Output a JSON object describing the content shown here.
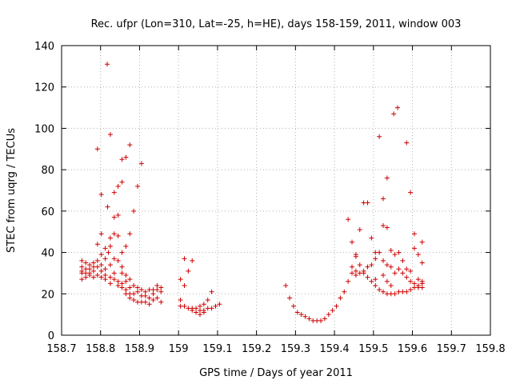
{
  "chart_data": {
    "type": "scatter",
    "title": "Rec. ufpr (Lon=310, Lat=-25, h=HE), days 158-159, 2011, window 003",
    "xlabel": "GPS time / Days of year 2011",
    "ylabel": "STEC from uqrg / TECUs",
    "xlim": [
      158.7,
      159.8
    ],
    "ylim": [
      0,
      140
    ],
    "xticks": [
      158.7,
      158.8,
      158.9,
      159.0,
      159.1,
      159.2,
      159.3,
      159.4,
      159.5,
      159.6,
      159.7,
      159.8
    ],
    "xtick_labels": [
      "158.7",
      "158.8",
      "158.9",
      "159",
      "159.1",
      "159.2",
      "159.3",
      "159.4",
      "159.5",
      "159.6",
      "159.7",
      "159.8"
    ],
    "yticks": [
      0,
      20,
      40,
      60,
      80,
      100,
      120,
      140
    ],
    "ytick_labels": [
      "0",
      "20",
      "40",
      "60",
      "80",
      "100",
      "120",
      "140"
    ],
    "grid": true,
    "marker": "+",
    "color": "#d00000",
    "series": [
      {
        "name": "STEC",
        "points": [
          [
            158.752,
            36
          ],
          [
            158.752,
            33
          ],
          [
            158.752,
            31
          ],
          [
            158.752,
            30
          ],
          [
            158.752,
            27
          ],
          [
            158.762,
            35
          ],
          [
            158.762,
            32
          ],
          [
            158.762,
            30
          ],
          [
            158.762,
            28
          ],
          [
            158.772,
            34
          ],
          [
            158.772,
            32
          ],
          [
            158.772,
            30
          ],
          [
            158.772,
            29
          ],
          [
            158.782,
            35
          ],
          [
            158.782,
            33
          ],
          [
            158.782,
            31
          ],
          [
            158.782,
            28
          ],
          [
            158.792,
            90
          ],
          [
            158.792,
            44
          ],
          [
            158.792,
            36
          ],
          [
            158.792,
            33
          ],
          [
            158.792,
            29
          ],
          [
            158.802,
            68
          ],
          [
            158.802,
            49
          ],
          [
            158.802,
            39
          ],
          [
            158.802,
            34
          ],
          [
            158.802,
            31
          ],
          [
            158.802,
            28
          ],
          [
            158.812,
            42
          ],
          [
            158.812,
            37
          ],
          [
            158.812,
            32
          ],
          [
            158.812,
            29
          ],
          [
            158.812,
            27
          ],
          [
            158.817,
            131
          ],
          [
            158.818,
            62
          ],
          [
            158.82,
            40
          ],
          [
            158.825,
            97
          ],
          [
            158.825,
            47
          ],
          [
            158.825,
            43
          ],
          [
            158.825,
            34
          ],
          [
            158.825,
            28
          ],
          [
            158.825,
            25
          ],
          [
            158.835,
            69
          ],
          [
            158.835,
            57
          ],
          [
            158.835,
            49
          ],
          [
            158.835,
            37
          ],
          [
            158.835,
            30
          ],
          [
            158.835,
            27
          ],
          [
            158.845,
            72
          ],
          [
            158.845,
            58
          ],
          [
            158.845,
            48
          ],
          [
            158.845,
            36
          ],
          [
            158.845,
            26
          ],
          [
            158.845,
            24
          ],
          [
            158.855,
            74
          ],
          [
            158.855,
            85
          ],
          [
            158.855,
            40
          ],
          [
            158.855,
            33
          ],
          [
            158.855,
            30
          ],
          [
            158.855,
            25
          ],
          [
            158.855,
            23
          ],
          [
            158.865,
            86
          ],
          [
            158.865,
            43
          ],
          [
            158.865,
            29
          ],
          [
            158.865,
            26
          ],
          [
            158.865,
            22
          ],
          [
            158.865,
            20
          ],
          [
            158.875,
            92
          ],
          [
            158.875,
            49
          ],
          [
            158.875,
            27
          ],
          [
            158.875,
            23
          ],
          [
            158.875,
            20
          ],
          [
            158.875,
            18
          ],
          [
            158.885,
            60
          ],
          [
            158.885,
            24
          ],
          [
            158.885,
            20
          ],
          [
            158.885,
            17
          ],
          [
            158.895,
            72
          ],
          [
            158.895,
            23
          ],
          [
            158.895,
            21
          ],
          [
            158.895,
            16
          ],
          [
            158.905,
            83
          ],
          [
            158.905,
            22
          ],
          [
            158.905,
            19
          ],
          [
            158.905,
            16
          ],
          [
            158.915,
            21
          ],
          [
            158.915,
            19
          ],
          [
            158.915,
            16
          ],
          [
            158.925,
            22
          ],
          [
            158.925,
            18
          ],
          [
            158.925,
            15
          ],
          [
            158.935,
            22
          ],
          [
            158.935,
            20
          ],
          [
            158.935,
            17
          ],
          [
            158.945,
            24
          ],
          [
            158.945,
            22
          ],
          [
            158.945,
            18
          ],
          [
            158.955,
            23
          ],
          [
            158.955,
            21
          ],
          [
            158.955,
            16
          ],
          [
            159.005,
            27
          ],
          [
            159.005,
            17
          ],
          [
            159.005,
            14
          ],
          [
            159.015,
            37
          ],
          [
            159.015,
            24
          ],
          [
            159.015,
            14
          ],
          [
            159.025,
            31
          ],
          [
            159.025,
            13
          ],
          [
            159.035,
            36
          ],
          [
            159.035,
            13
          ],
          [
            159.035,
            12
          ],
          [
            159.045,
            13
          ],
          [
            159.045,
            11
          ],
          [
            159.055,
            14
          ],
          [
            159.055,
            12
          ],
          [
            159.055,
            10
          ],
          [
            159.065,
            15
          ],
          [
            159.065,
            12
          ],
          [
            159.065,
            11
          ],
          [
            159.075,
            17
          ],
          [
            159.075,
            13
          ],
          [
            159.085,
            21
          ],
          [
            159.085,
            13
          ],
          [
            159.095,
            14
          ],
          [
            159.105,
            15
          ],
          [
            159.275,
            24
          ],
          [
            159.285,
            18
          ],
          [
            159.295,
            14
          ],
          [
            159.305,
            11
          ],
          [
            159.315,
            10
          ],
          [
            159.325,
            9
          ],
          [
            159.335,
            8
          ],
          [
            159.345,
            7
          ],
          [
            159.355,
            7
          ],
          [
            159.365,
            7
          ],
          [
            159.375,
            8
          ],
          [
            159.385,
            10
          ],
          [
            159.395,
            12
          ],
          [
            159.405,
            14
          ],
          [
            159.415,
            18
          ],
          [
            159.425,
            21
          ],
          [
            159.435,
            26
          ],
          [
            159.435,
            56
          ],
          [
            159.445,
            45
          ],
          [
            159.445,
            33
          ],
          [
            159.445,
            30
          ],
          [
            159.455,
            39
          ],
          [
            159.455,
            38
          ],
          [
            159.455,
            31
          ],
          [
            159.455,
            29
          ],
          [
            159.465,
            51
          ],
          [
            159.465,
            34
          ],
          [
            159.465,
            30
          ],
          [
            159.475,
            64
          ],
          [
            159.475,
            31
          ],
          [
            159.475,
            30
          ],
          [
            159.485,
            64
          ],
          [
            159.485,
            33
          ],
          [
            159.485,
            28
          ],
          [
            159.495,
            47
          ],
          [
            159.495,
            34
          ],
          [
            159.495,
            26
          ],
          [
            159.505,
            40
          ],
          [
            159.505,
            37
          ],
          [
            159.505,
            27
          ],
          [
            159.505,
            24
          ],
          [
            159.515,
            96
          ],
          [
            159.515,
            40
          ],
          [
            159.515,
            22
          ],
          [
            159.525,
            66
          ],
          [
            159.525,
            53
          ],
          [
            159.525,
            36
          ],
          [
            159.525,
            29
          ],
          [
            159.525,
            21
          ],
          [
            159.535,
            76
          ],
          [
            159.535,
            52
          ],
          [
            159.535,
            34
          ],
          [
            159.535,
            26
          ],
          [
            159.535,
            20
          ],
          [
            159.545,
            41
          ],
          [
            159.545,
            33
          ],
          [
            159.545,
            24
          ],
          [
            159.545,
            20
          ],
          [
            159.552,
            107
          ],
          [
            159.555,
            39
          ],
          [
            159.555,
            30
          ],
          [
            159.555,
            20
          ],
          [
            159.562,
            110
          ],
          [
            159.565,
            40
          ],
          [
            159.565,
            32
          ],
          [
            159.565,
            21
          ],
          [
            159.575,
            36
          ],
          [
            159.575,
            30
          ],
          [
            159.575,
            21
          ],
          [
            159.585,
            93
          ],
          [
            159.585,
            32
          ],
          [
            159.585,
            28
          ],
          [
            159.585,
            21
          ],
          [
            159.595,
            69
          ],
          [
            159.595,
            31
          ],
          [
            159.595,
            26
          ],
          [
            159.595,
            22
          ],
          [
            159.605,
            49
          ],
          [
            159.605,
            42
          ],
          [
            159.605,
            25
          ],
          [
            159.605,
            23
          ],
          [
            159.615,
            39
          ],
          [
            159.615,
            27
          ],
          [
            159.615,
            24
          ],
          [
            159.615,
            23
          ],
          [
            159.625,
            45
          ],
          [
            159.625,
            35
          ],
          [
            159.625,
            26
          ],
          [
            159.625,
            25
          ],
          [
            159.625,
            23
          ]
        ]
      }
    ]
  }
}
